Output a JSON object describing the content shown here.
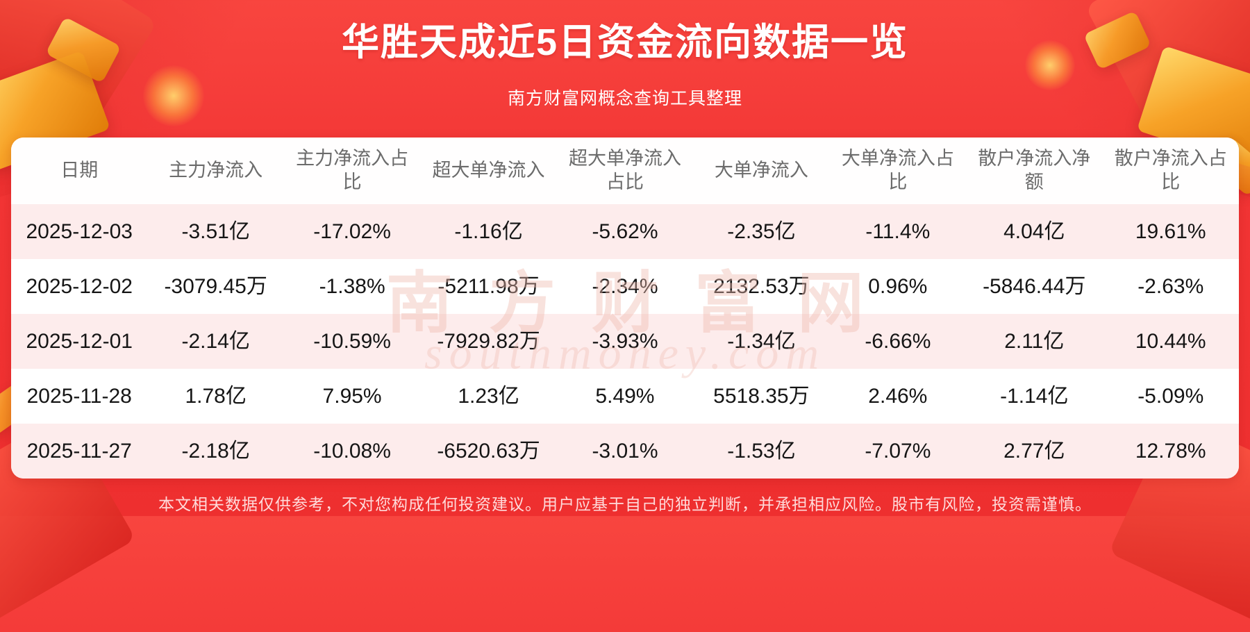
{
  "page": {
    "title": "华胜天成近5日资金流向数据一览",
    "subtitle": "南方财富网概念查询工具整理",
    "disclaimer": "本文相关数据仅供参考，不对您构成任何投资建议。用户应基于自己的独立判断，并承担相应风险。股市有风险，投资需谨慎。",
    "watermark": {
      "cn": "南方财富网",
      "en": "southmoney.com"
    }
  },
  "colors": {
    "background_red": "#f23535",
    "ribbon_red": "#d8241f",
    "gold_accent": "#f7a227",
    "row_pink": "#fdecec",
    "row_white": "#ffffff",
    "header_text": "#6b6b6b",
    "cell_text": "#151515",
    "title_text": "#ffffff"
  },
  "table": {
    "headers": [
      "日期",
      "主力净流入",
      "主力净流入占比",
      "超大单净流入",
      "超大单净流入占比",
      "大单净流入",
      "大单净流入占比",
      "散户净流入净额",
      "散户净流入占比"
    ],
    "rows": [
      [
        "2025-12-03",
        "-3.51亿",
        "-17.02%",
        "-1.16亿",
        "-5.62%",
        "-2.35亿",
        "-11.4%",
        "4.04亿",
        "19.61%"
      ],
      [
        "2025-12-02",
        "-3079.45万",
        "-1.38%",
        "-5211.98万",
        "-2.34%",
        "2132.53万",
        "0.96%",
        "-5846.44万",
        "-2.63%"
      ],
      [
        "2025-12-01",
        "-2.14亿",
        "-10.59%",
        "-7929.82万",
        "-3.93%",
        "-1.34亿",
        "-6.66%",
        "2.11亿",
        "10.44%"
      ],
      [
        "2025-11-28",
        "1.78亿",
        "7.95%",
        "1.23亿",
        "5.49%",
        "5518.35万",
        "2.46%",
        "-1.14亿",
        "-5.09%"
      ],
      [
        "2025-11-27",
        "-2.18亿",
        "-10.08%",
        "-6520.63万",
        "-3.01%",
        "-1.53亿",
        "-7.07%",
        "2.77亿",
        "12.78%"
      ]
    ]
  },
  "chart_data": {
    "type": "table",
    "title": "华胜天成近5日资金流向数据一览",
    "subtitle": "南方财富网概念查询工具整理",
    "columns": [
      "日期",
      "主力净流入",
      "主力净流入占比",
      "超大单净流入",
      "超大单净流入占比",
      "大单净流入",
      "大单净流入占比",
      "散户净流入净额",
      "散户净流入占比"
    ],
    "rows": [
      [
        "2025-12-03",
        "-3.51亿",
        "-17.02%",
        "-1.16亿",
        "-5.62%",
        "-2.35亿",
        "-11.4%",
        "4.04亿",
        "19.61%"
      ],
      [
        "2025-12-02",
        "-3079.45万",
        "-1.38%",
        "-5211.98万",
        "-2.34%",
        "2132.53万",
        "0.96%",
        "-5846.44万",
        "-2.63%"
      ],
      [
        "2025-12-01",
        "-2.14亿",
        "-10.59%",
        "-7929.82万",
        "-3.93%",
        "-1.34亿",
        "-6.66%",
        "2.11亿",
        "10.44%"
      ],
      [
        "2025-11-28",
        "1.78亿",
        "7.95%",
        "1.23亿",
        "5.49%",
        "5518.35万",
        "2.46%",
        "-1.14亿",
        "-5.09%"
      ],
      [
        "2025-11-27",
        "-2.18亿",
        "-10.08%",
        "-6520.63万",
        "-3.01%",
        "-1.53亿",
        "-7.07%",
        "2.77亿",
        "12.78%"
      ]
    ]
  }
}
